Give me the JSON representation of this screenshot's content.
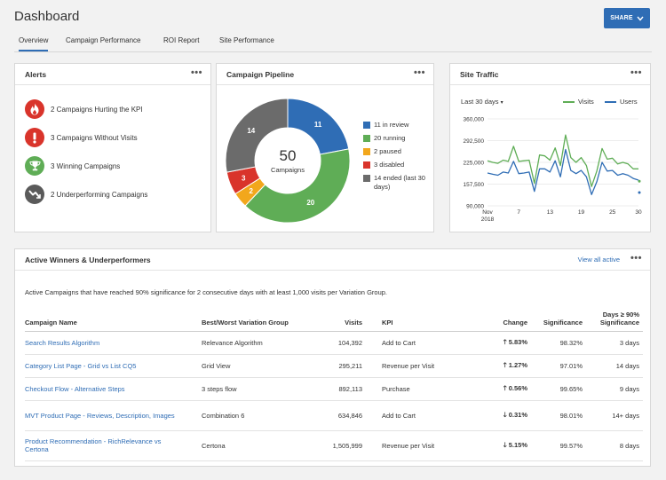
{
  "page": {
    "title": "Dashboard",
    "share_label": "SHARE"
  },
  "tabs": [
    {
      "label": "Overview",
      "active": true
    },
    {
      "label": "Campaign Performance",
      "active": false
    },
    {
      "label": "ROI Report",
      "active": false
    },
    {
      "label": "Site Performance",
      "active": false
    }
  ],
  "panel_menu_glyph": "•••",
  "alerts": {
    "title": "Alerts",
    "items": [
      {
        "label": "2 Campaigns Hurting the KPI",
        "icon": "flame-icon",
        "color": "#d9342b"
      },
      {
        "label": "3 Campaigns Without Visits",
        "icon": "exclamation-icon",
        "color": "#d9342b"
      },
      {
        "label": "3 Winning Campaigns",
        "icon": "trophy-icon",
        "color": "#5fad56"
      },
      {
        "label": "2 Underperforming Campaigns",
        "icon": "trend-down-icon",
        "color": "#5a5a5a"
      }
    ]
  },
  "pipeline": {
    "title": "Campaign Pipeline",
    "center_value": "50",
    "center_label": "Campaigns",
    "segments": [
      {
        "value": 11,
        "label": "11",
        "color": "#2f6db5"
      },
      {
        "value": 20,
        "label": "20",
        "color": "#5fad56"
      },
      {
        "value": 2,
        "label": "2",
        "color": "#f2a71c"
      },
      {
        "value": 3,
        "label": "3",
        "color": "#d9342b"
      },
      {
        "value": 14,
        "label": "14",
        "color": "#6b6b6b"
      }
    ],
    "legend": [
      {
        "label": "11 in review",
        "color": "#2f6db5"
      },
      {
        "label": "20 running",
        "color": "#5fad56"
      },
      {
        "label": "2 paused",
        "color": "#f2a71c"
      },
      {
        "label": "3 disabled",
        "color": "#d9342b"
      },
      {
        "label": "14 ended (last 30 days)",
        "color": "#6b6b6b"
      }
    ]
  },
  "traffic": {
    "title": "Site Traffic",
    "filter_label": "Last 30 days",
    "legend": [
      {
        "label": "Visits",
        "color": "#5fad56"
      },
      {
        "label": "Users",
        "color": "#2f6db5"
      }
    ],
    "chart_data": {
      "type": "line",
      "x": [
        1,
        2,
        3,
        4,
        5,
        6,
        7,
        8,
        9,
        10,
        11,
        12,
        13,
        14,
        15,
        16,
        17,
        18,
        19,
        20,
        21,
        22,
        23,
        24,
        25,
        26,
        27,
        28,
        29,
        30
      ],
      "x_tick_labels": [
        {
          "x": 1,
          "label": "Nov"
        },
        {
          "x": 7,
          "label": "7"
        },
        {
          "x": 13,
          "label": "13"
        },
        {
          "x": 19,
          "label": "19"
        },
        {
          "x": 25,
          "label": "25"
        },
        {
          "x": 30,
          "label": "30"
        }
      ],
      "x_year_label": "2018",
      "y_ticks": [
        "360,000",
        "292,500",
        "225,000",
        "157,500",
        "90,000"
      ],
      "ylim": [
        90000,
        360000
      ],
      "series": [
        {
          "name": "Visits",
          "color": "#5fad56",
          "values": [
            230000,
            225000,
            222000,
            232000,
            228000,
            275000,
            228000,
            230000,
            232000,
            160000,
            248000,
            245000,
            232000,
            270000,
            215000,
            310000,
            240000,
            225000,
            240000,
            215000,
            150000,
            198000,
            268000,
            235000,
            238000,
            220000,
            225000,
            220000,
            205000,
            205000
          ]
        },
        {
          "name": "Users",
          "color": "#2f6db5",
          "values": [
            192000,
            188000,
            185000,
            195000,
            192000,
            228000,
            190000,
            192000,
            195000,
            135000,
            205000,
            205000,
            195000,
            230000,
            180000,
            265000,
            200000,
            190000,
            200000,
            180000,
            125000,
            165000,
            225000,
            198000,
            200000,
            185000,
            190000,
            185000,
            175000,
            170000
          ]
        }
      ]
    }
  },
  "winners": {
    "title": "Active Winners & Underperformers",
    "view_all": "View all active",
    "description": "Active Campaigns that have reached 90% significance for 2 consecutive days with at least 1,000 visits per Variation Group.",
    "columns": [
      "Campaign Name",
      "Best/Worst Variation Group",
      "Visits",
      "KPI",
      "Change",
      "Significance",
      "Days ≥ 90% Significance"
    ],
    "rows": [
      {
        "name": "Search Results Algorithm",
        "group": "Relevance Algorithm",
        "visits": "104,392",
        "kpi": "Add to Cart",
        "change": "5.83%",
        "direction": "up",
        "significance": "98.32%",
        "days": "3 days"
      },
      {
        "name": "Category List Page - Grid vs List CQ5",
        "group": "Grid View",
        "visits": "295,211",
        "kpi": "Revenue per Visit",
        "change": "1.27%",
        "direction": "up",
        "significance": "97.01%",
        "days": "14 days"
      },
      {
        "name": "Checkout Flow - Alternative Steps",
        "group": "3 steps flow",
        "visits": "892,113",
        "kpi": "Purchase",
        "change": "0.56%",
        "direction": "up",
        "significance": "99.65%",
        "days": "9 days"
      },
      {
        "name": "MVT Product Page - Reviews, Description, Images",
        "group": "Combination 6",
        "visits": "634,846",
        "kpi": "Add to Cart",
        "change": "0.31%",
        "direction": "down",
        "significance": "98.01%",
        "days": "14+ days"
      },
      {
        "name": "Product Recommendation - RichRelevance vs Certona",
        "group": "Certona",
        "visits": "1,505,999",
        "kpi": "Revenue per Visit",
        "change": "5.15%",
        "direction": "down",
        "significance": "99.57%",
        "days": "8 days"
      }
    ]
  }
}
